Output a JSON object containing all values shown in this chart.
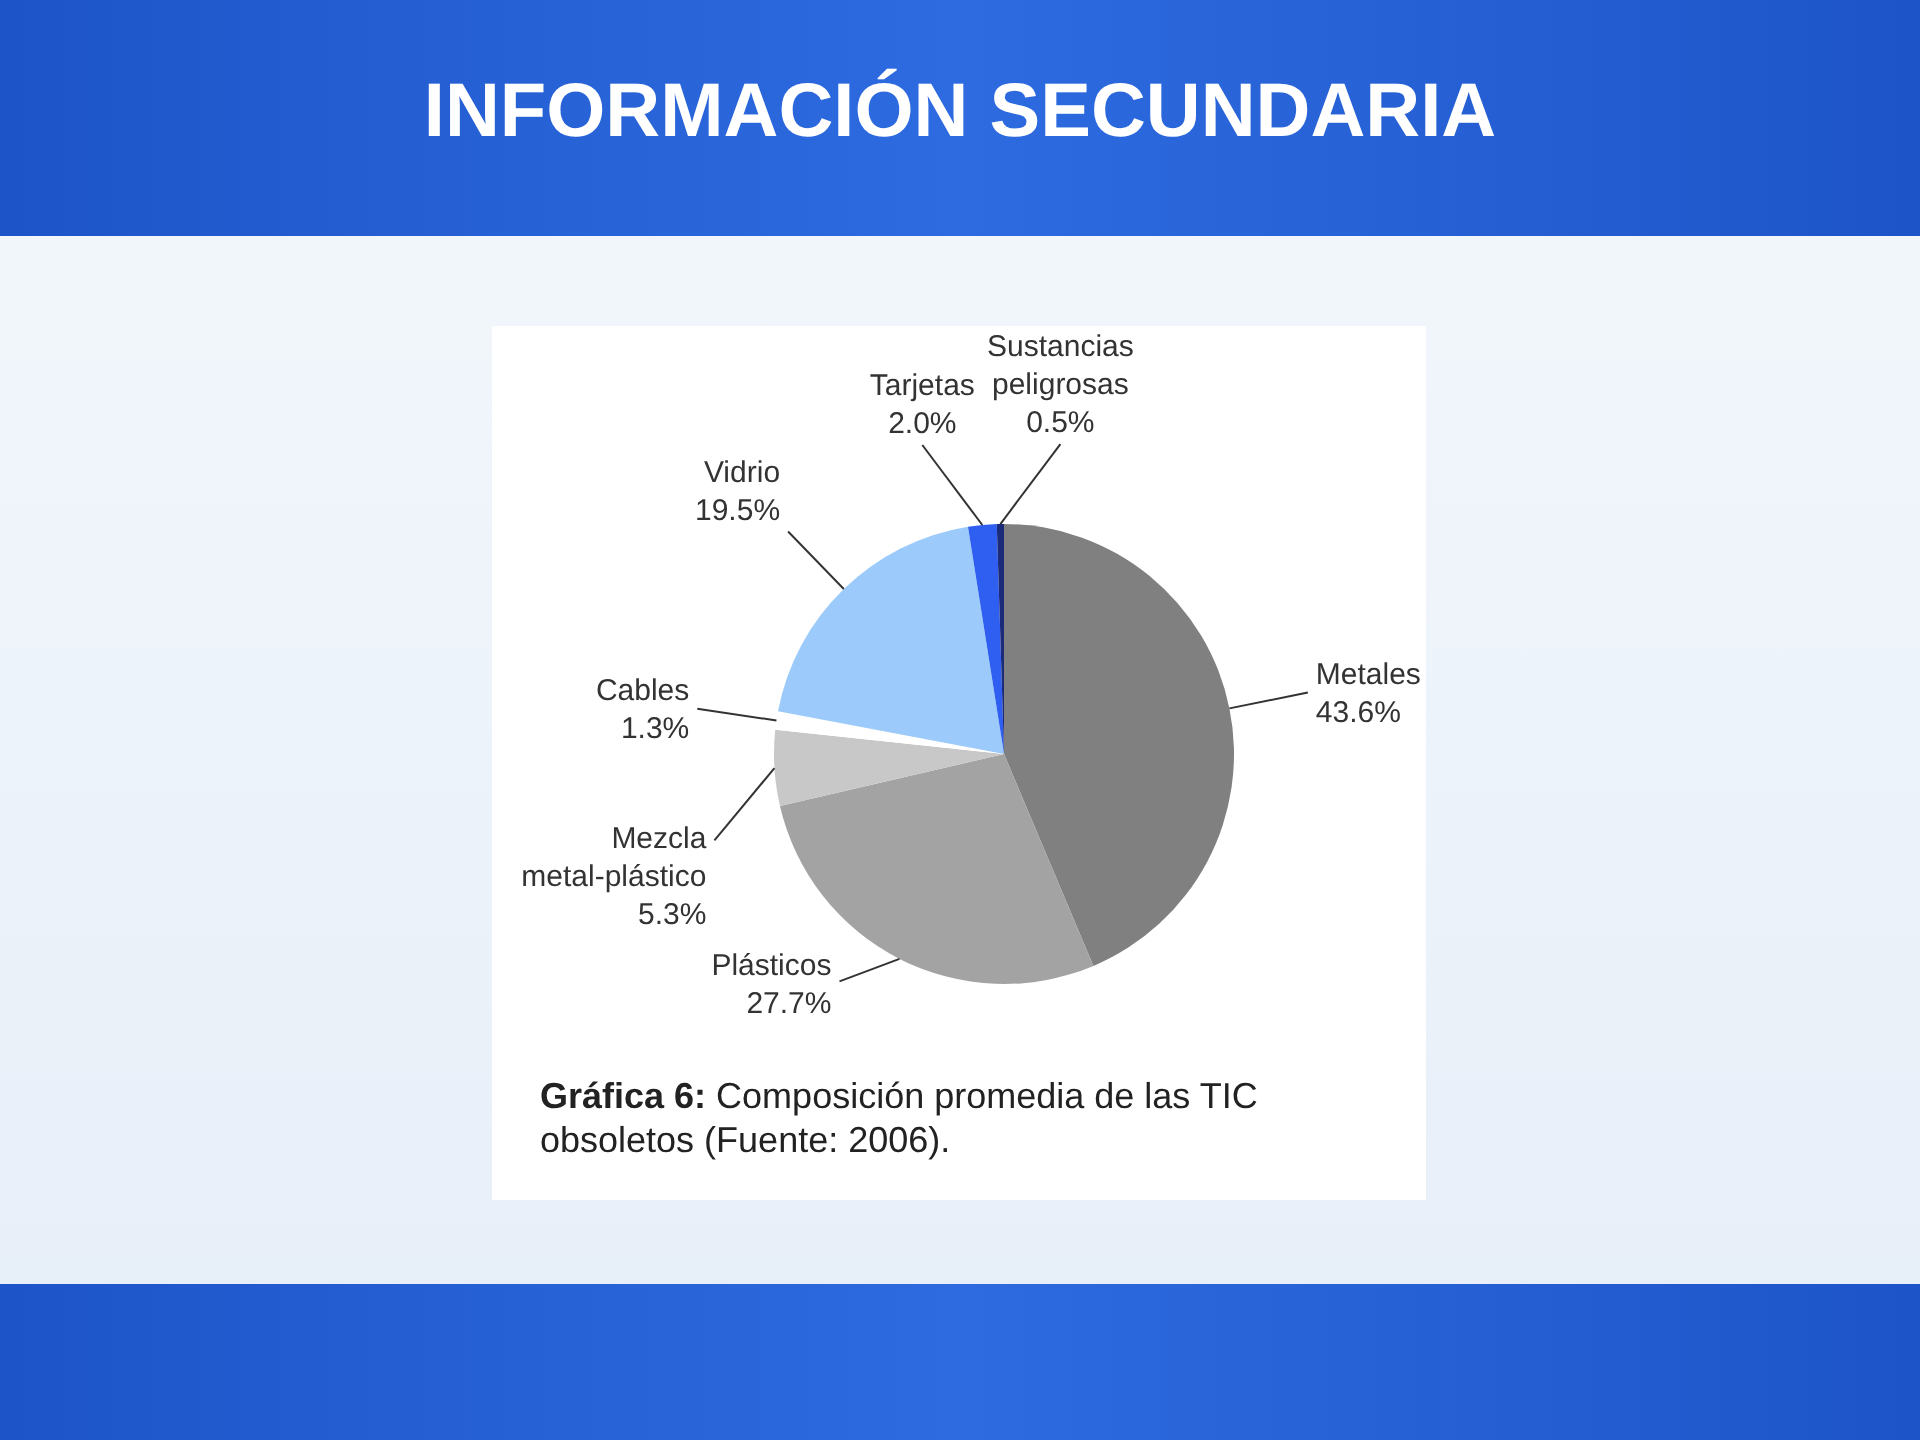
{
  "chart_data": {
    "type": "pie",
    "title": "INFORMACIÓN SECUNDARIA",
    "categories": [
      "Metales",
      "Plásticos",
      "Mezcla metal-plástico",
      "Cables",
      "Vidrio",
      "Tarjetas",
      "Sustancias peligrosas"
    ],
    "values": [
      43.6,
      27.7,
      5.3,
      1.3,
      19.5,
      2.0,
      0.5
    ],
    "value_labels": [
      "43.6%",
      "27.7%",
      "5.3%",
      "1.3%",
      "19.5%",
      "2.0%",
      "0.5%"
    ],
    "colors": [
      "#808080",
      "#a3a3a3",
      "#c8c8c8",
      "#ffffff",
      "#9ccbfb",
      "#2f5ff0",
      "#1c2a7a"
    ],
    "annotations": [
      "Gráfica 6: Composición promedia de las TIC obsoletos (Fuente: 2006)."
    ]
  }
}
